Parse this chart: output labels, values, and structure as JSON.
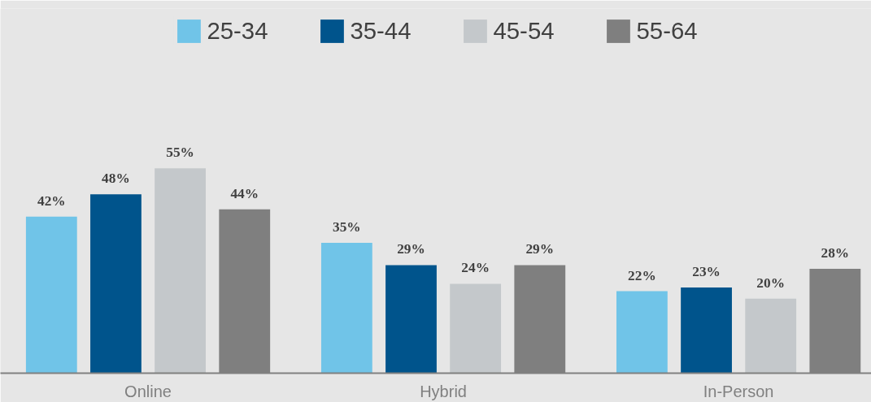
{
  "chart_data": {
    "type": "bar",
    "categories": [
      "Online",
      "Hybrid",
      "In-Person"
    ],
    "legend": "top",
    "series": [
      {
        "name": "25-34",
        "color": "#70c4e8",
        "values": [
          42,
          35,
          22
        ],
        "value_labels": [
          "42%",
          "35%",
          "22%"
        ]
      },
      {
        "name": "35-44",
        "color": "#00548c",
        "values": [
          48,
          29,
          23
        ],
        "value_labels": [
          "48%",
          "29%",
          "23%"
        ]
      },
      {
        "name": "45-54",
        "color": "#c4c8cb",
        "values": [
          55,
          24,
          20
        ],
        "value_labels": [
          "55%",
          "24%",
          "20%"
        ]
      },
      {
        "name": "55-64",
        "color": "#7f7f7f",
        "values": [
          44,
          29,
          28
        ],
        "value_labels": [
          "44%",
          "29%",
          "28%"
        ]
      }
    ]
  }
}
